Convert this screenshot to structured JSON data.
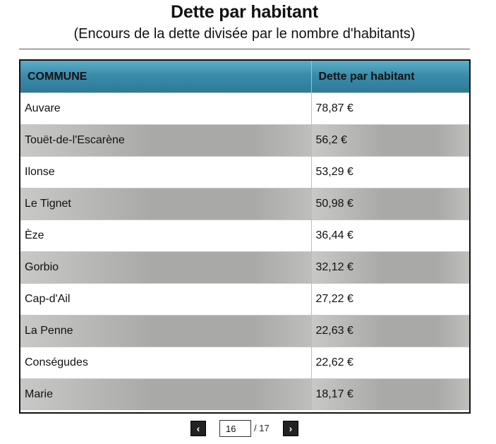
{
  "header": {
    "title": "Dette par habitant",
    "subtitle": "(Encours de la dette divisée par le nombre d'habitants)"
  },
  "table": {
    "columns": [
      "COMMUNE",
      "Dette par habitant"
    ],
    "rows": [
      [
        "Auvare",
        "78,87 €"
      ],
      [
        "Touët-de-l'Escarène",
        "56,2 €"
      ],
      [
        "Ilonse",
        "53,29 €"
      ],
      [
        "Le Tignet",
        "50,98 €"
      ],
      [
        "Èze",
        "36,44 €"
      ],
      [
        "Gorbio",
        "32,12 €"
      ],
      [
        "Cap-d'Ail",
        "27,22 €"
      ],
      [
        "La Penne",
        "22,63 €"
      ],
      [
        "Conségudes",
        "22,62 €"
      ],
      [
        "Marie",
        "18,17 €"
      ]
    ]
  },
  "pagination": {
    "prev_label": "‹",
    "next_label": "›",
    "current_page": "16",
    "total_label": "/ 17"
  },
  "colors": {
    "header_blue": "#3a8cab",
    "alt_row_gray": "#a9aaa7"
  },
  "chart_data": {
    "type": "table",
    "title": "Dette par habitant",
    "subtitle": "(Encours de la dette divisée par le nombre d'habitants)",
    "columns": [
      "COMMUNE",
      "Dette par habitant"
    ],
    "categories": [
      "Auvare",
      "Touët-de-l'Escarène",
      "Ilonse",
      "Le Tignet",
      "Èze",
      "Gorbio",
      "Cap-d'Ail",
      "La Penne",
      "Conségudes",
      "Marie"
    ],
    "values": [
      78.87,
      56.2,
      53.29,
      50.98,
      36.44,
      32.12,
      27.22,
      22.63,
      22.62,
      18.17
    ],
    "unit": "€",
    "page": 16,
    "total_pages": 17
  }
}
